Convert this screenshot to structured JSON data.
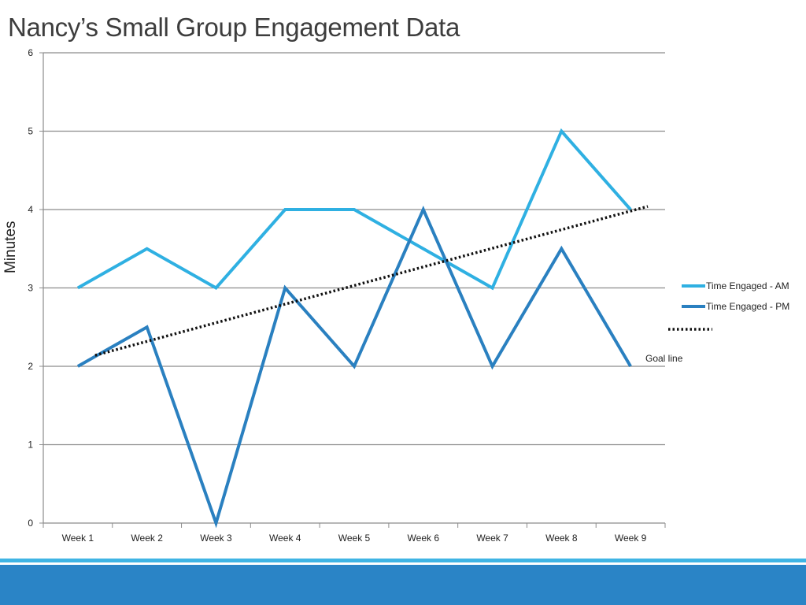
{
  "slide": {
    "title": "Nancy’s Small Group Engagement Data",
    "accent_light": "#3fb4e4",
    "accent_dark": "#2a84c6"
  },
  "chart_data": {
    "type": "line",
    "title": "Nancy’s Small Group Engagement Data",
    "xlabel": "",
    "ylabel": "Minutes",
    "ylim": [
      0,
      6
    ],
    "yticks": [
      "0",
      "1",
      "2",
      "3",
      "4",
      "5",
      "6"
    ],
    "grid": true,
    "categories": [
      "Week 1",
      "Week 2",
      "Week 3",
      "Week 4",
      "Week 5",
      "Week 6",
      "Week 7",
      "Week 8",
      "Week 9"
    ],
    "series": [
      {
        "name": "Time Engaged - AM",
        "color": "#2fb0e2",
        "values": [
          3,
          3.5,
          3,
          4,
          4,
          3.5,
          3,
          5,
          4
        ]
      },
      {
        "name": "Time Engaged - PM",
        "color": "#2a80c0",
        "values": [
          2,
          2.5,
          0,
          3,
          2,
          4,
          2,
          3.5,
          2
        ]
      }
    ],
    "goal_line": {
      "label": "Goal line",
      "color": "#111111",
      "style": "dotted",
      "start": {
        "x": 0.75,
        "y": 2.14
      },
      "end": {
        "x": 8.75,
        "y": 4.04
      }
    },
    "legend_position": "right"
  }
}
